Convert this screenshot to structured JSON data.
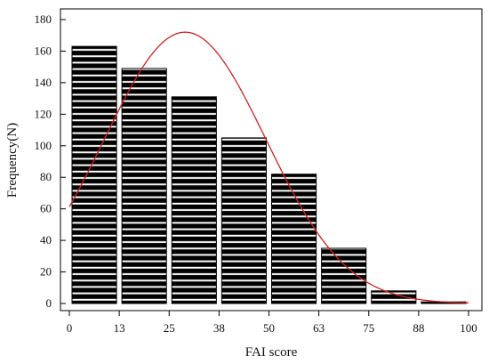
{
  "chart_data": {
    "type": "bar",
    "title": "",
    "xlabel": "FAI score",
    "ylabel": "Frequency(N)",
    "x_ticks": [
      "0",
      "13",
      "25",
      "38",
      "50",
      "63",
      "75",
      "88",
      "100"
    ],
    "y_ticks": [
      "0",
      "20",
      "40",
      "60",
      "80",
      "100",
      "120",
      "140",
      "160",
      "180"
    ],
    "xlim": [
      0,
      100
    ],
    "ylim": [
      0,
      180
    ],
    "bins": [
      {
        "x0": 0,
        "x1": 12.5,
        "value": 163
      },
      {
        "x0": 12.5,
        "x1": 25,
        "value": 149
      },
      {
        "x0": 25,
        "x1": 37.5,
        "value": 131
      },
      {
        "x0": 37.5,
        "x1": 50,
        "value": 105
      },
      {
        "x0": 50,
        "x1": 62.5,
        "value": 82
      },
      {
        "x0": 62.5,
        "x1": 75,
        "value": 35
      },
      {
        "x0": 75,
        "x1": 87.5,
        "value": 8
      },
      {
        "x0": 87.5,
        "x1": 100,
        "value": 1
      }
    ],
    "fit_curve": {
      "type": "normal",
      "peak_x": 29,
      "peak_y": 172,
      "sd": 20.2,
      "color": "#d42020"
    },
    "bar_fill": "#000000",
    "bar_stripe": "#ffffff",
    "grid": false
  }
}
